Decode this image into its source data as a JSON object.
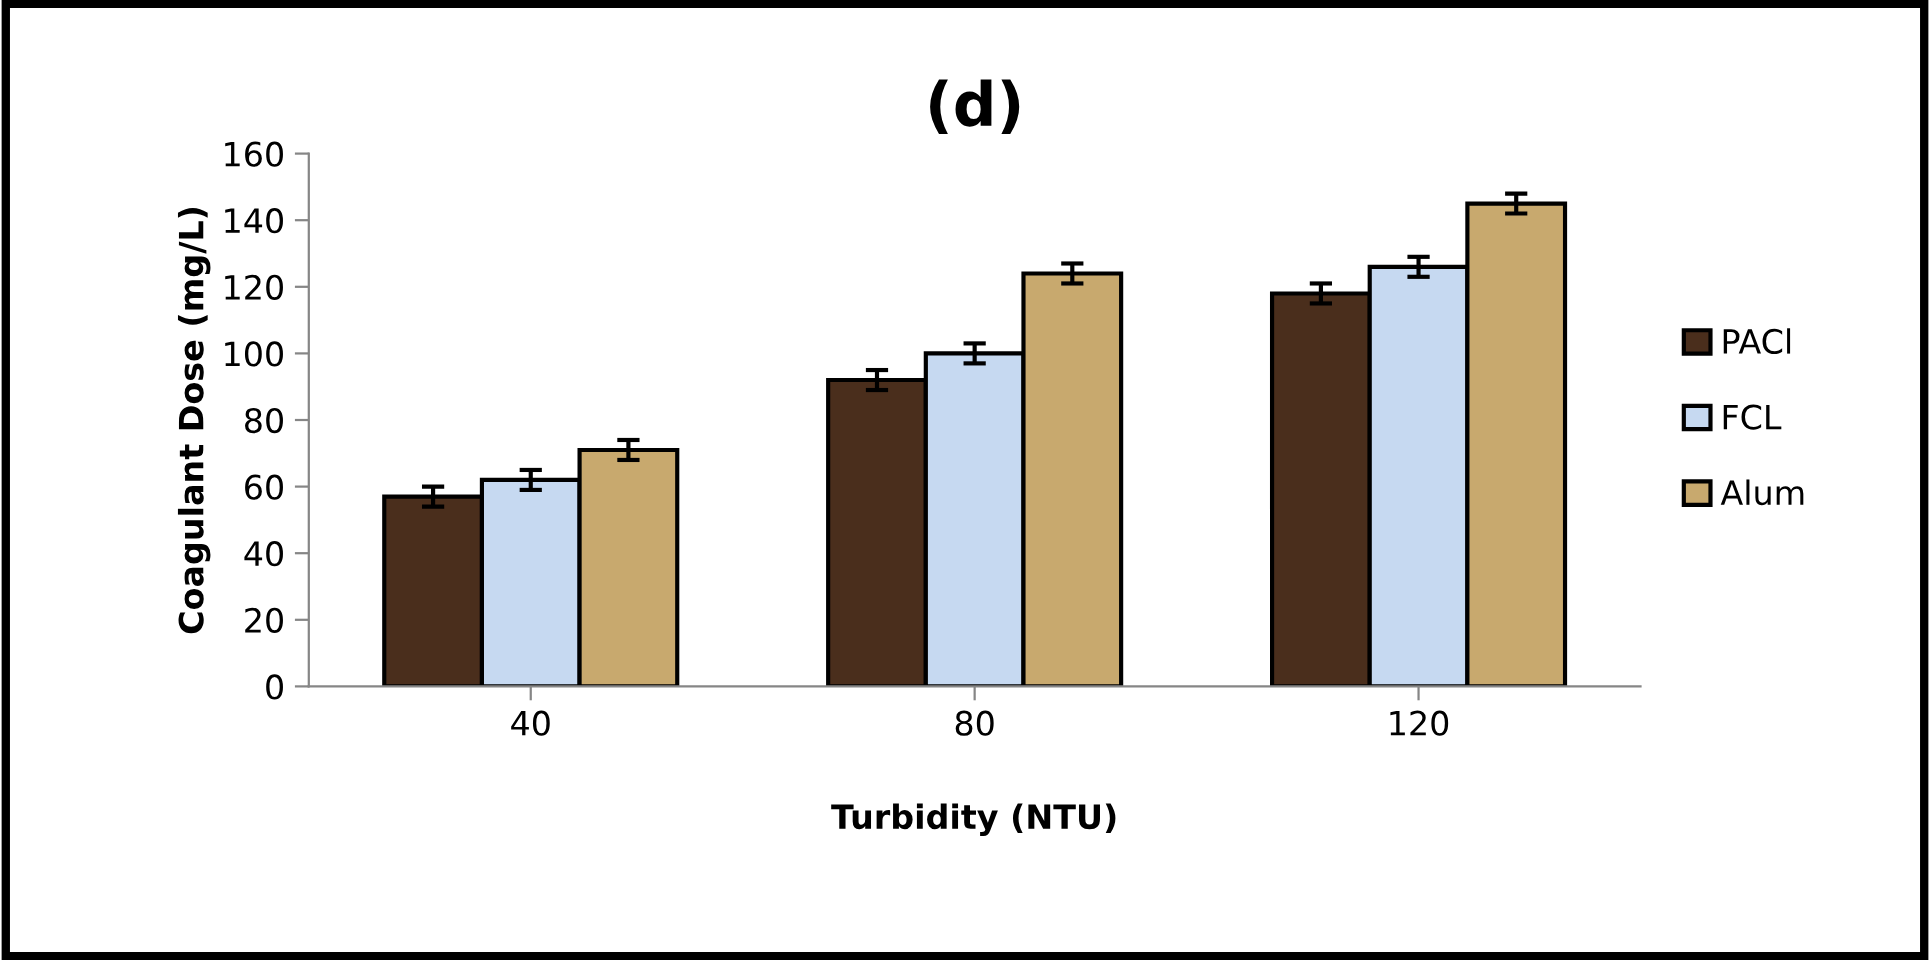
{
  "chart_data": {
    "type": "bar",
    "title": "(d)",
    "xlabel": "Turbidity (NTU)",
    "ylabel": "Coagulant Dose (mg/L)",
    "categories": [
      "40",
      "80",
      "120"
    ],
    "series": [
      {
        "name": "PACl",
        "color": "#4a2e1c",
        "values": [
          57,
          92,
          118
        ],
        "errors": [
          3,
          3,
          3
        ]
      },
      {
        "name": "FCL",
        "color": "#c6d9f1",
        "values": [
          62,
          100,
          126
        ],
        "errors": [
          3,
          3,
          3
        ]
      },
      {
        "name": "Alum",
        "color": "#c8a96e",
        "values": [
          71,
          124,
          145
        ],
        "errors": [
          3,
          3,
          3
        ]
      }
    ],
    "ylim": [
      0,
      160
    ],
    "yticks": [
      0,
      20,
      40,
      60,
      80,
      100,
      120,
      140,
      160
    ],
    "grid": false,
    "legend": "right"
  }
}
